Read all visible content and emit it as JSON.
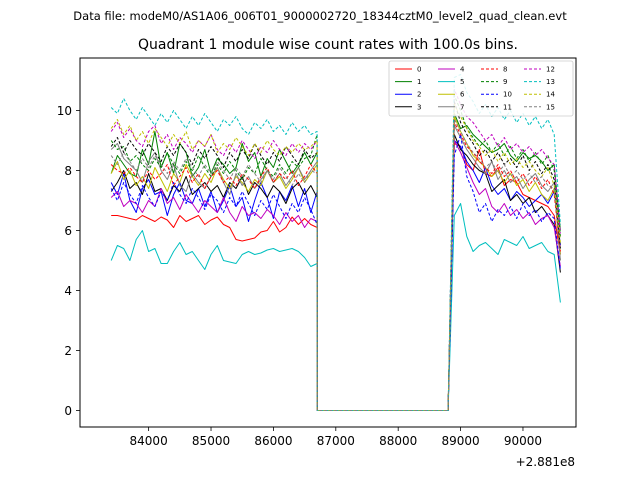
{
  "header": {
    "datafile": "Data file: modeM0/AS1A06_006T01_9000002720_18344cztM0_level2_quad_clean.evt"
  },
  "chart_data": {
    "type": "line",
    "title": "Quadrant 1 module wise count rates with 100.0s bins.",
    "xlabel": "",
    "ylabel": "",
    "x_offset_label": "+2.881e8",
    "xlim": [
      82900,
      90850
    ],
    "ylim": [
      -0.55,
      11.75
    ],
    "xticks": [
      84000,
      85000,
      86000,
      87000,
      88000,
      89000,
      90000
    ],
    "xtick_labels": [
      "84000",
      "85000",
      "86000",
      "87000",
      "88000",
      "89000",
      "90000"
    ],
    "yticks": [
      0,
      2,
      4,
      6,
      8,
      10
    ],
    "ytick_labels": [
      "0",
      "2",
      "4",
      "6",
      "8",
      "10"
    ],
    "grid": false,
    "legend_placement": "top-right",
    "bin_seconds": 100,
    "segments": [
      {
        "start": 83400,
        "n": 34
      },
      {
        "start": 86700,
        "n": 22
      },
      {
        "start": 88900,
        "n": 18
      }
    ],
    "series": [
      {
        "name": "0",
        "color": "#ff0000",
        "dash": "solid",
        "s1": [
          6.5,
          6.5,
          6.45,
          6.4,
          6.35,
          6.5,
          6.4,
          6.3,
          6.45,
          6.35,
          6.1,
          6.5,
          6.3,
          6.4,
          6.5,
          6.2,
          6.35,
          6.45,
          6.2,
          6.1,
          5.7,
          5.65,
          5.7,
          5.75,
          5.95,
          6.0,
          6.3,
          5.95,
          6.1,
          6.45,
          6.2,
          6.4,
          6.2,
          6.1
        ],
        "s2": [
          8.9,
          8.8,
          8.2,
          8.0,
          8.7,
          7.9,
          7.8,
          8.1,
          7.5,
          7.7,
          7.6,
          7.2,
          7.1,
          7.0,
          6.9,
          6.8,
          6.5,
          5.2
        ]
      },
      {
        "name": "1",
        "color": "#008000",
        "dash": "solid",
        "s1": [
          7.9,
          8.5,
          8.2,
          7.9,
          7.8,
          8.7,
          8.2,
          9.3,
          8.1,
          8.6,
          7.9,
          8.9,
          8.6,
          7.8,
          8.1,
          8.7,
          7.9,
          8.4,
          8.2,
          7.9,
          8.1,
          8.9,
          8.3,
          8.6,
          7.8,
          8.4,
          8.1,
          8.7,
          8.3,
          7.9,
          8.2,
          8.6,
          8.2,
          8.6
        ],
        "s2": [
          9.9,
          9.4,
          9.5,
          9.2,
          9.0,
          8.8,
          8.6,
          8.7,
          8.9,
          8.5,
          8.3,
          8.6,
          8.4,
          8.5,
          8.3,
          8.0,
          8.2,
          6.0
        ]
      },
      {
        "name": "2",
        "color": "#0000ff",
        "dash": "solid",
        "s1": [
          7.6,
          7.2,
          7.9,
          7.0,
          6.6,
          7.4,
          7.7,
          7.2,
          7.3,
          6.5,
          7.2,
          7.6,
          7.0,
          6.9,
          7.4,
          6.8,
          7.3,
          6.6,
          7.0,
          7.5,
          6.8,
          7.1,
          6.3,
          7.0,
          7.6,
          7.1,
          6.4,
          7.3,
          7.0,
          7.5,
          6.8,
          7.4,
          6.6,
          7.3
        ],
        "s2": [
          9.0,
          8.8,
          8.3,
          8.0,
          7.6,
          8.1,
          7.5,
          7.2,
          7.4,
          7.0,
          7.3,
          7.1,
          6.8,
          7.0,
          7.2,
          6.9,
          7.3,
          5.5
        ]
      },
      {
        "name": "3",
        "color": "#000000",
        "dash": "solid",
        "s1": [
          7.3,
          7.6,
          8.0,
          7.4,
          7.6,
          7.2,
          7.9,
          7.3,
          7.4,
          7.0,
          7.5,
          7.3,
          7.8,
          7.2,
          7.4,
          7.6,
          7.3,
          7.5,
          7.1,
          7.6,
          7.4,
          7.8,
          7.2,
          7.6,
          7.4,
          7.1,
          7.5,
          7.3,
          6.9,
          7.4,
          7.6,
          7.2,
          7.5,
          7.1
        ],
        "s2": [
          9.2,
          8.7,
          8.5,
          8.2,
          8.0,
          7.9,
          7.3,
          7.5,
          7.7,
          7.0,
          7.2,
          6.9,
          7.1,
          6.6,
          6.8,
          6.5,
          6.2,
          4.6
        ]
      },
      {
        "name": "4",
        "color": "#bf00bf",
        "dash": "solid",
        "s1": [
          7.1,
          7.3,
          6.8,
          7.0,
          6.9,
          6.6,
          7.0,
          6.8,
          7.4,
          6.9,
          7.1,
          6.7,
          7.2,
          6.9,
          6.6,
          7.0,
          6.8,
          6.6,
          7.1,
          6.6,
          6.3,
          6.8,
          6.5,
          6.6,
          6.4,
          6.7,
          6.5,
          6.2,
          6.6,
          6.3,
          6.5,
          6.1,
          6.4,
          6.3
        ],
        "s2": [
          9.0,
          8.6,
          8.1,
          7.6,
          7.2,
          7.4,
          6.8,
          6.6,
          6.9,
          6.5,
          6.7,
          6.4,
          6.6,
          6.2,
          6.4,
          6.5,
          6.1,
          4.8
        ]
      },
      {
        "name": "5",
        "color": "#00bfbf",
        "dash": "solid",
        "s1": [
          5.0,
          5.5,
          5.4,
          5.0,
          5.7,
          6.0,
          5.3,
          5.4,
          4.9,
          4.9,
          5.3,
          5.6,
          5.2,
          5.3,
          5.0,
          4.7,
          5.2,
          5.5,
          5.0,
          4.95,
          4.9,
          5.2,
          5.3,
          5.2,
          5.25,
          5.35,
          5.4,
          5.3,
          5.35,
          5.4,
          5.3,
          5.1,
          4.8,
          4.9
        ],
        "s2": [
          6.5,
          6.9,
          5.8,
          5.3,
          5.5,
          5.6,
          5.4,
          5.2,
          5.7,
          5.6,
          5.5,
          5.8,
          5.4,
          5.5,
          5.6,
          5.3,
          5.2,
          3.6
        ]
      },
      {
        "name": "6",
        "color": "#bfbf00",
        "dash": "solid",
        "s1": [
          7.9,
          8.3,
          7.7,
          8.0,
          7.5,
          7.8,
          7.4,
          8.1,
          7.7,
          7.3,
          7.9,
          7.6,
          8.2,
          7.8,
          7.5,
          7.9,
          7.6,
          8.1,
          7.7,
          7.4,
          7.8,
          7.6,
          7.3,
          7.7,
          7.5,
          8.0,
          7.6,
          7.8,
          7.4,
          7.7,
          8.1,
          7.6,
          7.9,
          8.2
        ],
        "s2": [
          9.8,
          9.3,
          8.9,
          8.5,
          8.3,
          8.1,
          7.8,
          8.0,
          7.6,
          7.9,
          7.5,
          7.7,
          7.3,
          7.6,
          7.2,
          7.0,
          7.4,
          5.2
        ]
      },
      {
        "name": "7",
        "color": "#808080",
        "dash": "solid",
        "s1": [
          8.7,
          8.9,
          8.4,
          8.2,
          8.0,
          7.6,
          8.3,
          8.6,
          8.0,
          7.7,
          8.2,
          7.5,
          7.3,
          7.9,
          7.6,
          7.4,
          7.8,
          8.1,
          7.6,
          7.2,
          7.9,
          7.5,
          7.8,
          7.4,
          7.7,
          8.0,
          7.6,
          7.9,
          7.5,
          7.8,
          8.1,
          7.7,
          8.0,
          8.3
        ],
        "s2": [
          9.5,
          9.1,
          8.7,
          8.4,
          8.1,
          7.9,
          8.3,
          7.7,
          8.0,
          7.6,
          7.8,
          7.4,
          7.7,
          7.9,
          7.5,
          7.3,
          7.6,
          5.0
        ]
      },
      {
        "name": "8",
        "color": "#ff0000",
        "dash": "dashed",
        "s1": [
          8.2,
          8.0,
          7.9,
          8.1,
          7.8,
          7.6,
          8.0,
          7.7,
          7.9,
          8.2,
          7.5,
          7.8,
          8.1,
          7.6,
          7.9,
          7.4,
          7.8,
          8.0,
          7.6,
          7.8,
          7.5,
          7.9,
          7.7,
          7.4,
          7.8,
          8.1,
          7.6,
          7.9,
          7.7,
          8.0,
          7.5,
          7.8,
          8.2,
          7.9
        ],
        "s2": [
          9.6,
          9.2,
          8.8,
          8.6,
          8.3,
          8.1,
          7.9,
          8.2,
          7.8,
          8.0,
          7.6,
          7.9,
          7.5,
          7.8,
          7.4,
          7.7,
          7.2,
          5.3
        ]
      },
      {
        "name": "9",
        "color": "#008000",
        "dash": "dashed",
        "s1": [
          9.0,
          8.7,
          8.8,
          8.3,
          8.5,
          8.2,
          8.0,
          8.4,
          8.1,
          8.6,
          8.2,
          7.9,
          8.3,
          8.0,
          8.5,
          8.1,
          7.8,
          8.2,
          7.9,
          8.3,
          8.0,
          7.7,
          8.1,
          7.9,
          8.4,
          8.0,
          7.8,
          8.2,
          7.9,
          8.3,
          8.1,
          8.4,
          8.5,
          9.2
        ],
        "s2": [
          10.5,
          10.0,
          9.4,
          9.1,
          8.8,
          9.0,
          8.6,
          8.9,
          8.5,
          8.8,
          8.4,
          8.7,
          8.3,
          8.6,
          8.2,
          8.5,
          8.0,
          5.8
        ]
      },
      {
        "name": "10",
        "color": "#0000ff",
        "dash": "dashed",
        "s1": [
          7.4,
          7.0,
          7.6,
          7.2,
          6.9,
          7.5,
          7.1,
          6.8,
          7.3,
          7.0,
          7.6,
          7.2,
          6.9,
          7.4,
          7.1,
          6.7,
          7.2,
          7.0,
          6.6,
          7.1,
          6.8,
          7.3,
          6.9,
          6.5,
          7.0,
          6.7,
          7.2,
          6.8,
          6.4,
          6.9,
          6.6,
          7.1,
          6.7,
          6.2
        ],
        "s2": [
          8.5,
          9.2,
          7.8,
          7.3,
          6.6,
          6.9,
          6.3,
          6.7,
          6.5,
          6.8,
          6.4,
          6.9,
          6.5,
          6.7,
          6.3,
          6.6,
          6.4,
          4.7
        ]
      },
      {
        "name": "11",
        "color": "#000000",
        "dash": "dashed",
        "s1": [
          8.8,
          9.1,
          8.6,
          9.0,
          8.7,
          8.5,
          8.9,
          8.6,
          8.3,
          8.8,
          8.5,
          8.9,
          8.6,
          8.2,
          8.7,
          8.4,
          8.8,
          8.5,
          8.1,
          8.6,
          8.3,
          8.7,
          8.4,
          8.9,
          8.5,
          8.2,
          8.6,
          8.3,
          8.8,
          8.5,
          8.2,
          8.7,
          8.4,
          8.6
        ],
        "s2": [
          10.3,
          9.6,
          9.2,
          8.9,
          8.5,
          8.7,
          8.3,
          8.6,
          8.2,
          8.4,
          8.1,
          8.5,
          8.0,
          8.3,
          7.9,
          8.2,
          7.7,
          5.4
        ]
      },
      {
        "name": "12",
        "color": "#bf00bf",
        "dash": "dashed",
        "s1": [
          9.3,
          9.6,
          9.1,
          9.4,
          9.0,
          8.8,
          9.3,
          9.5,
          8.9,
          9.2,
          8.7,
          9.1,
          8.9,
          8.6,
          9.0,
          8.8,
          9.2,
          8.7,
          8.5,
          8.9,
          8.6,
          9.0,
          8.7,
          8.4,
          8.8,
          8.6,
          9.0,
          8.7,
          8.5,
          8.9,
          8.6,
          8.9,
          8.7,
          9.0
        ],
        "s2": [
          10.7,
          10.2,
          9.8,
          9.6,
          9.3,
          9.0,
          9.2,
          8.8,
          9.1,
          8.7,
          8.9,
          8.6,
          8.8,
          8.5,
          8.7,
          8.4,
          8.2,
          5.9
        ]
      },
      {
        "name": "13",
        "color": "#00bfbf",
        "dash": "dashed",
        "s1": [
          10.1,
          9.9,
          10.4,
          10.0,
          9.7,
          10.1,
          9.8,
          9.5,
          9.9,
          9.6,
          10.0,
          9.7,
          9.4,
          9.8,
          9.5,
          9.9,
          9.6,
          9.3,
          9.7,
          9.5,
          9.8,
          9.4,
          9.2,
          9.6,
          9.4,
          9.7,
          9.3,
          9.5,
          9.2,
          9.6,
          9.3,
          9.5,
          9.2,
          9.3
        ],
        "s2": [
          11.1,
          11.2,
          10.6,
          10.3,
          9.9,
          10.2,
          9.8,
          10.1,
          9.7,
          10.0,
          9.6,
          9.9,
          9.5,
          9.8,
          9.4,
          9.7,
          9.2,
          6.2
        ]
      },
      {
        "name": "14",
        "color": "#bfbf00",
        "dash": "dashed",
        "s1": [
          9.4,
          9.7,
          9.2,
          9.5,
          9.0,
          9.3,
          8.9,
          9.4,
          9.1,
          8.8,
          9.2,
          8.9,
          9.3,
          8.7,
          9.0,
          8.8,
          9.2,
          8.6,
          8.9,
          8.7,
          9.1,
          8.8,
          8.5,
          8.9,
          8.6,
          9.0,
          8.7,
          8.5,
          8.8,
          8.6,
          8.9,
          8.7,
          8.8,
          9.0
        ],
        "s2": [
          10.2,
          9.8,
          9.4,
          9.0,
          8.8,
          8.5,
          8.7,
          8.3,
          8.6,
          8.2,
          8.4,
          8.1,
          8.3,
          8.0,
          7.8,
          8.1,
          7.5,
          5.6
        ]
      },
      {
        "name": "15",
        "color": "#808080",
        "dash": "dashed",
        "s1": [
          8.5,
          8.2,
          8.6,
          8.3,
          8.0,
          8.4,
          8.1,
          8.5,
          8.2,
          7.9,
          8.3,
          8.0,
          8.4,
          8.1,
          7.8,
          8.2,
          7.9,
          8.3,
          8.0,
          7.7,
          8.1,
          7.8,
          8.2,
          7.9,
          7.6,
          8.0,
          7.7,
          8.1,
          7.8,
          7.5,
          7.9,
          7.6,
          8.0,
          7.9
        ],
        "s2": [
          9.7,
          9.3,
          8.9,
          8.6,
          8.4,
          8.1,
          8.3,
          7.9,
          8.2,
          7.8,
          8.0,
          7.7,
          7.9,
          7.6,
          7.8,
          7.5,
          7.4,
          5.0
        ]
      }
    ]
  }
}
